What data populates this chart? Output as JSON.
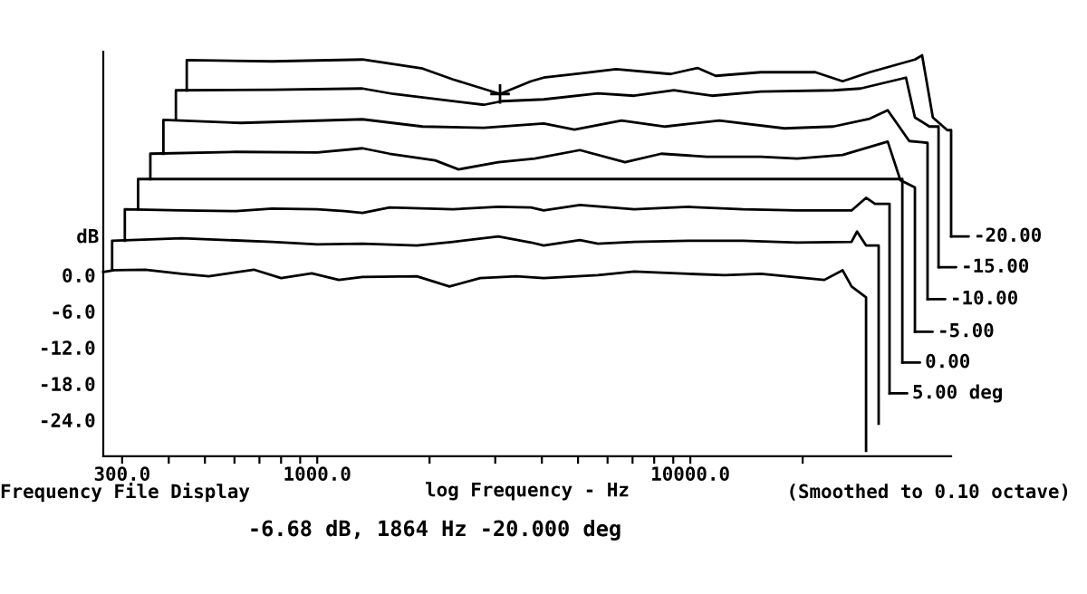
{
  "chart_data": {
    "type": "line",
    "xlabel": "log Frequency - Hz",
    "ylabel": "dB",
    "log": "x",
    "xlim": [
      267,
      50000
    ],
    "ylim": [
      -30,
      37
    ],
    "xticks": [
      {
        "value": 300,
        "label": "300.0"
      },
      {
        "value": 400,
        "label": null
      },
      {
        "value": 500,
        "label": null
      },
      {
        "value": 600,
        "label": null
      },
      {
        "value": 700,
        "label": null
      },
      {
        "value": 800,
        "label": null
      },
      {
        "value": 900,
        "label": null
      },
      {
        "value": 1000,
        "label": "1000.0"
      },
      {
        "value": 2000,
        "label": null
      },
      {
        "value": 3000,
        "label": null
      },
      {
        "value": 4000,
        "label": null
      },
      {
        "value": 5000,
        "label": null
      },
      {
        "value": 6000,
        "label": null
      },
      {
        "value": 7000,
        "label": null
      },
      {
        "value": 8000,
        "label": null
      },
      {
        "value": 9000,
        "label": null
      },
      {
        "value": 10000,
        "label": "10000.0"
      },
      {
        "value": 20000,
        "label": null
      }
    ],
    "yticks": [
      {
        "value": 0,
        "label": "0.0"
      },
      {
        "value": -6,
        "label": "-6.0"
      },
      {
        "value": -12,
        "label": "-12.0"
      },
      {
        "value": -18,
        "label": "-18.0"
      },
      {
        "value": -24,
        "label": "-24.0"
      }
    ],
    "grid": false,
    "legend": "right",
    "marker": "none",
    "line_style": "solid",
    "series": [
      {
        "color": "#000000",
        "x": [
          267,
          286,
          346,
          433,
          512,
          676,
          800,
          967,
          1143,
          1322,
          1849,
          2261,
          2733,
          3420,
          4045,
          5654,
          7071,
          9890,
          12360,
          15460,
          22860,
          25590,
          27050,
          29580,
          29580
        ],
        "values": [
          0.5,
          0.8,
          0.9,
          0.2,
          -0.2,
          0.9,
          -0.5,
          0.3,
          -0.8,
          -0.3,
          -0.2,
          -1.9,
          -0.5,
          -0.2,
          -0.5,
          0,
          0.6,
          0.2,
          0,
          0.2,
          -0.8,
          0.8,
          -1.9,
          -3.7,
          -29.1
        ]
      },
      {
        "color": "#000000",
        "x": [
          282,
          282,
          433,
          757,
          1000,
          1322,
          1849,
          2312,
          3057,
          3740,
          4045,
          5058,
          5654,
          7071,
          9890,
          13830,
          19330,
          27040,
          27980,
          29580,
          30920,
          31970,
          31970
        ],
        "values": [
          0.8,
          5.7,
          6.1,
          5.5,
          5.1,
          5.2,
          4.9,
          5.5,
          6.4,
          5.4,
          4.9,
          5.8,
          5.2,
          5.5,
          5.7,
          5.7,
          5.4,
          5.5,
          7.2,
          4.9,
          4.9,
          4.9,
          -24.6
        ]
      },
      {
        "name": "5.00 deg",
        "color": "#000000",
        "x": [
          305,
          305,
          433,
          606,
          757,
          1000,
          1183,
          1322,
          1563,
          2312,
          3057,
          3740,
          4045,
          5058,
          7071,
          9890,
          13830,
          19330,
          27040,
          29580,
          31260,
          34190,
          34190
        ],
        "values": [
          5.7,
          10.9,
          10.7,
          10.6,
          11.0,
          10.9,
          10.6,
          10.3,
          11.2,
          10.9,
          11.3,
          11.2,
          10.7,
          11.6,
          10.9,
          11.3,
          10.9,
          10.7,
          10.7,
          12.8,
          11.8,
          11.8,
          -19.6
        ]
      },
      {
        "name": "0.00",
        "color": "#000000",
        "x": [
          331,
          331,
          37000,
          37000
        ],
        "values": [
          10.9,
          15.9,
          15.9,
          -14.5
        ]
      },
      {
        "name": "-5.00",
        "color": "#000000",
        "x": [
          357,
          357,
          606,
          1000,
          1322,
          1563,
          2070,
          2393,
          3057,
          3828,
          5058,
          6683,
          8360,
          11060,
          15460,
          19330,
          25590,
          33810,
          36560,
          39990,
          39990
        ],
        "values": [
          15.9,
          20.1,
          20.4,
          20.3,
          21.0,
          20.1,
          19.0,
          17.5,
          18.7,
          19.3,
          20.7,
          18.7,
          20.1,
          19.6,
          19.6,
          19.3,
          19.9,
          22.1,
          15.7,
          14.5,
          -9.4
        ]
      },
      {
        "name": "-10.00",
        "color": "#000000",
        "x": [
          387,
          387,
          625,
          1322,
          1916,
          2798,
          4045,
          4890,
          6540,
          8560,
          11960,
          17880,
          24160,
          30260,
          33810,
          38610,
          43230,
          43230
        ],
        "values": [
          20.1,
          25.7,
          25.2,
          25.8,
          24.6,
          24.4,
          25.1,
          24.1,
          25.6,
          24.6,
          25.6,
          24.3,
          24.6,
          25.9,
          27.3,
          22.2,
          21.9,
          -4.0
        ]
      },
      {
        "name": "-15.00",
        "color": "#000000",
        "x": [
          418,
          418,
          757,
          1322,
          1600,
          2798,
          3126,
          4045,
          5654,
          7071,
          9040,
          11430,
          15460,
          24160,
          28580,
          37840,
          39990,
          43740,
          46260,
          46260
        ],
        "values": [
          25.7,
          30.6,
          30.7,
          30.9,
          30.0,
          28.2,
          28.8,
          29.1,
          30.1,
          29.7,
          30.6,
          29.7,
          30.4,
          30.6,
          30.9,
          32.7,
          26.1,
          24.6,
          24.6,
          1.3
        ]
      },
      {
        "name": "-20.00",
        "color": "#000000",
        "x": [
          447,
          447,
          757,
          1322,
          1916,
          2312,
          3090,
          3740,
          4045,
          5058,
          6324,
          8850,
          10450,
          11690,
          15460,
          21630,
          25590,
          30260,
          39990,
          41800,
          44670,
          48830,
          50000,
          50000
        ],
        "values": [
          30.6,
          35.6,
          35.4,
          35.7,
          34.2,
          32.4,
          30.0,
          32.1,
          32.7,
          33.4,
          34.1,
          33.3,
          34.3,
          33.0,
          33.6,
          33.6,
          32.1,
          33.6,
          35.7,
          36.4,
          26.1,
          24.0,
          24.0,
          6.4
        ]
      },
      {
        "type": "scatter",
        "marker": "cross",
        "color": "#000000",
        "x": [
          3090
        ],
        "values": [
          30.0
        ]
      }
    ],
    "annotations": [
      "Frequency File Display",
      "(Smoothed to 0.10 octave)",
      "-6.68 dB, 1864 Hz -20.000 deg"
    ]
  }
}
